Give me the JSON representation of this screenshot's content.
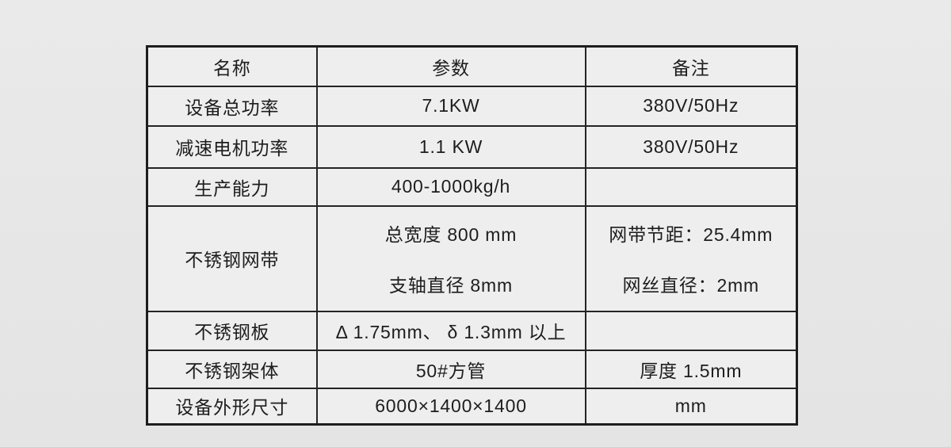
{
  "page": {
    "background_color": "#e6e6e6",
    "text_color": "#1d1d1d"
  },
  "table": {
    "border_color": "#242424",
    "cell_background": "#eeeeee",
    "headers": [
      "名称",
      "参数",
      "备注"
    ],
    "rows": [
      {
        "name": "设备总功率",
        "param_lines": [
          "7.1KW"
        ],
        "remark_lines": [
          "380V/50Hz"
        ]
      },
      {
        "name": "减速电机功率",
        "param_lines": [
          "1.1 KW"
        ],
        "remark_lines": [
          "380V/50Hz"
        ]
      },
      {
        "name": "生产能力",
        "param_lines": [
          "400-1000kg/h"
        ],
        "remark_lines": []
      },
      {
        "name": "不锈钢网带",
        "param_lines": [
          "总宽度 800 mm",
          "支轴直径 8mm"
        ],
        "remark_lines": [
          "网带节距：25.4mm",
          "网丝直径：2mm"
        ]
      },
      {
        "name": "不锈钢板",
        "param_lines": [
          "Δ 1.75mm、 δ 1.3mm 以上"
        ],
        "remark_lines": []
      },
      {
        "name": "不锈钢架体",
        "param_lines": [
          "50#方管"
        ],
        "remark_lines": [
          "厚度 1.5mm"
        ]
      },
      {
        "name": "设备外形尺寸",
        "param_lines": [
          "6000×1400×1400"
        ],
        "remark_lines": [
          "mm"
        ]
      }
    ]
  }
}
